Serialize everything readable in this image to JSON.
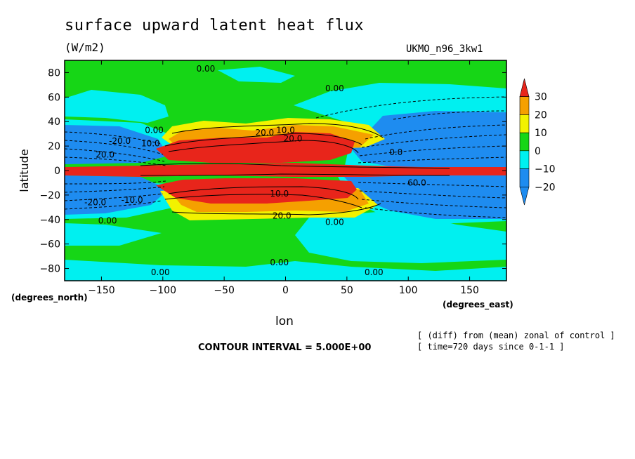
{
  "title": "surface upward latent heat flux",
  "units": "(W/m2)",
  "model": "UKMO_n96_3kw1",
  "notes": [
    "[ (diff) from (mean) zonal of control ]",
    "[ time=720 days since 0-1-1 ]"
  ],
  "contour_interval": "CONTOUR INTERVAL = 5.000E+00",
  "chart_data": {
    "type": "heatmap",
    "title": "surface upward latent heat flux",
    "xlabel": "lon",
    "ylabel": "latitude",
    "x_unit_label": "(degrees_east)",
    "y_unit_label": "(degrees_north)",
    "xlim": [
      -180,
      180
    ],
    "ylim": [
      -90,
      90
    ],
    "x_ticks": [
      -150,
      -100,
      -50,
      0,
      50,
      100,
      150
    ],
    "y_ticks": [
      -80,
      -60,
      -40,
      -20,
      0,
      20,
      40,
      60,
      80
    ],
    "colorbar": {
      "ticks": [
        30,
        20,
        10,
        0,
        -10,
        -20
      ],
      "colors": [
        "#e8251b",
        "#f5a000",
        "#f2f200",
        "#16d616",
        "#00f0f0",
        "#1e8cf0",
        "#1e8cf0"
      ],
      "range": [
        -30,
        40
      ]
    },
    "contour_labels": [
      {
        "text": "0.00",
        "lon": -65,
        "lat": 83
      },
      {
        "text": "0.00",
        "lon": 40,
        "lat": 67
      },
      {
        "text": "0.00",
        "lon": -107,
        "lat": 33
      },
      {
        "text": "-20.0",
        "lon": -135,
        "lat": 24
      },
      {
        "text": "10.0",
        "lon": -110,
        "lat": 22
      },
      {
        "text": "20.0",
        "lon": -147,
        "lat": 13
      },
      {
        "text": "20.0",
        "lon": -17,
        "lat": 31
      },
      {
        "text": "10.0",
        "lon": 0,
        "lat": 33
      },
      {
        "text": "20.0",
        "lon": 6,
        "lat": 26
      },
      {
        "text": "0.0",
        "lon": 90,
        "lat": 15
      },
      {
        "text": "60.0",
        "lon": 107,
        "lat": -10
      },
      {
        "text": "-20.0",
        "lon": -155,
        "lat": -26
      },
      {
        "text": "-10.0",
        "lon": -125,
        "lat": -24
      },
      {
        "text": "10.0",
        "lon": -5,
        "lat": -19
      },
      {
        "text": "20.0",
        "lon": -3,
        "lat": -37
      },
      {
        "text": "0.00",
        "lon": -145,
        "lat": -41
      },
      {
        "text": "0.00",
        "lon": 40,
        "lat": -42
      },
      {
        "text": "0.00",
        "lon": -102,
        "lat": -83
      },
      {
        "text": "0.00",
        "lon": -5,
        "lat": -75
      },
      {
        "text": "0.00",
        "lon": 72,
        "lat": -83
      }
    ]
  }
}
